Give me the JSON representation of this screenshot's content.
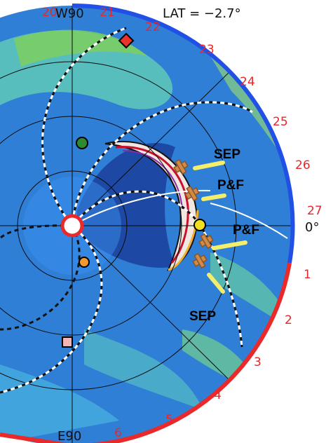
{
  "header": {
    "left_label": "20",
    "w90_label": "W90",
    "after_w90_label": "21",
    "lat_text": "LAT = −2.7°"
  },
  "bottom_label": "E90",
  "right_zero_label": "0°",
  "day_labels": [
    "22",
    "23",
    "24",
    "25",
    "26",
    "27",
    "1",
    "2",
    "3",
    "4",
    "5",
    "6"
  ],
  "annotations": [
    "SEP",
    "P&F",
    "P&F",
    "SEP"
  ],
  "colors": {
    "background_disk": "#2f7fd6",
    "inner_blue": "#3d9ef0",
    "outer_rim_blue": "#2050e6",
    "outer_rim_red": "#ea2a2a",
    "label_red": "#e8272a",
    "sep_bar_yellow": "#f4ee6b",
    "spacecraft": "#d08a4a"
  },
  "markers": [
    {
      "name": "red-diamond-marker",
      "shape": "diamond",
      "color": "#e8322a"
    },
    {
      "name": "green-circle-marker",
      "shape": "circle",
      "color": "#2f8a2f"
    },
    {
      "name": "yellow-circle-marker",
      "shape": "circle",
      "color": "#f0e020"
    },
    {
      "name": "orange-circle-marker",
      "shape": "circle",
      "color": "#f09a30"
    },
    {
      "name": "pink-square-marker",
      "shape": "square",
      "color": "#f2b4b4"
    }
  ]
}
